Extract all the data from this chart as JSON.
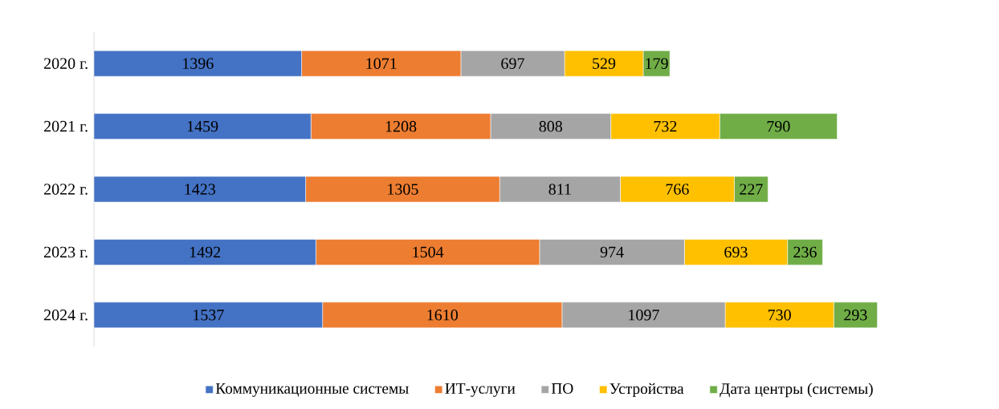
{
  "chart_data": {
    "type": "bar",
    "orientation": "horizontal",
    "stacked": true,
    "data_labels": true,
    "legend": "bottom",
    "categories": [
      "2020 г.",
      "2021 г.",
      "2022 г.",
      "2023 г.",
      "2024 г."
    ],
    "series": [
      {
        "name": "Коммуникационные системы",
        "color": "#4472c4",
        "values": [
          1396,
          1459,
          1423,
          1492,
          1537
        ]
      },
      {
        "name": "ИТ-услуги",
        "color": "#ed7d31",
        "values": [
          1071,
          1208,
          1305,
          1504,
          1610
        ]
      },
      {
        "name": "ПО",
        "color": "#a5a5a5",
        "values": [
          697,
          808,
          811,
          974,
          1097
        ]
      },
      {
        "name": "Устройства",
        "color": "#ffc000",
        "values": [
          529,
          732,
          766,
          693,
          730
        ]
      },
      {
        "name": "Дата центры (системы)",
        "color": "#70ad47",
        "values": [
          179,
          790,
          227,
          236,
          293
        ]
      }
    ]
  }
}
